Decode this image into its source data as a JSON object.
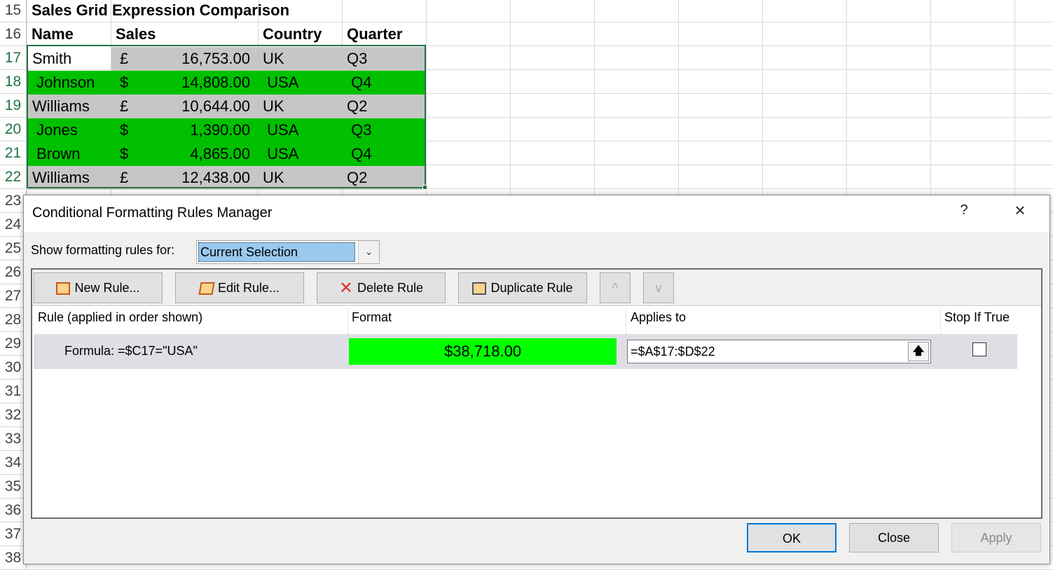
{
  "sheet": {
    "row_numbers": [
      "15",
      "16",
      "17",
      "18",
      "19",
      "20",
      "21",
      "22",
      "23",
      "24",
      "25",
      "26",
      "27",
      "28",
      "29",
      "30",
      "31",
      "32",
      "33",
      "34",
      "35",
      "36",
      "37",
      "38"
    ],
    "title": "Sales Grid Expression Comparison",
    "headers": [
      "Name",
      "Sales",
      "Country",
      "Quarter"
    ],
    "rows": [
      {
        "name": "Smith",
        "cur": "£",
        "sales": "16,753.00",
        "country": "UK",
        "quarter": "Q3",
        "fill": "grey"
      },
      {
        "name": " Johnson",
        "cur": "$",
        "sales": "14,808.00",
        "country": " USA",
        "quarter": " Q4",
        "fill": "green"
      },
      {
        "name": "Williams",
        "cur": "£",
        "sales": "10,644.00",
        "country": "UK",
        "quarter": "Q2",
        "fill": "grey"
      },
      {
        "name": " Jones",
        "cur": "$",
        "sales": "1,390.00",
        "country": " USA",
        "quarter": " Q3",
        "fill": "green"
      },
      {
        "name": " Brown",
        "cur": "$",
        "sales": "4,865.00",
        "country": " USA",
        "quarter": " Q4",
        "fill": "green"
      },
      {
        "name": "Williams",
        "cur": "£",
        "sales": "12,438.00",
        "country": "UK",
        "quarter": "Q2",
        "fill": "grey"
      }
    ],
    "colors": {
      "green": "#00c000",
      "grey": "#c6c6c6",
      "selection": "#217346"
    }
  },
  "dialog": {
    "title": "Conditional Formatting Rules Manager",
    "help": "?",
    "close_icon": "×",
    "show_rules_label": "Show formatting rules for:",
    "show_rules_value": "Current Selection",
    "buttons": {
      "new_rule": "New Rule...",
      "edit_rule": "Edit Rule...",
      "delete_rule": "Delete Rule",
      "duplicate_rule": "Duplicate Rule",
      "move_up": "^",
      "move_down": "v"
    },
    "columns": [
      "Rule (applied in order shown)",
      "Format",
      "Applies to",
      "Stop If True"
    ],
    "rules": [
      {
        "rule": "Formula: =$C17=\"USA\"",
        "format_preview": "$38,718.00",
        "applies_to": "=$A$17:$D$22",
        "stop_if_true": false,
        "format_color": "#00ff00"
      }
    ],
    "footer": {
      "ok": "OK",
      "close": "Close",
      "apply": "Apply"
    }
  }
}
